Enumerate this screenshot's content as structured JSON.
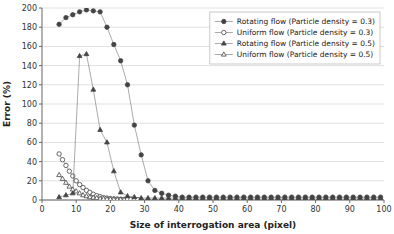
{
  "chart_data": {
    "type": "line",
    "xlabel": "Size of interrogation area (pixel)",
    "ylabel": "Error (%)",
    "xlim": [
      0,
      100
    ],
    "ylim": [
      0,
      200
    ],
    "xticks": [
      0,
      10,
      20,
      30,
      40,
      50,
      60,
      70,
      80,
      90,
      100
    ],
    "yticks": [
      0,
      20,
      40,
      60,
      80,
      100,
      120,
      140,
      160,
      180,
      200
    ],
    "grid": true,
    "legend": "upper right",
    "color": "#444444",
    "series": [
      {
        "name": "Rotating flow (Particle density = 0.3)",
        "marker": "circle",
        "x": [
          5,
          7,
          9,
          11,
          13,
          15,
          17,
          19,
          21,
          23,
          25,
          27,
          29,
          31,
          33,
          35,
          37,
          39,
          41,
          43,
          45,
          47,
          49,
          51,
          53,
          55,
          57,
          59,
          61,
          63,
          65,
          67,
          69,
          71,
          73,
          75,
          77,
          79,
          81,
          83,
          85,
          87,
          89,
          91,
          93,
          95,
          97,
          99
        ],
        "values": [
          183,
          190,
          193,
          196,
          198,
          197,
          196,
          180,
          162,
          145,
          120,
          78,
          47,
          20,
          10,
          7,
          5,
          4,
          3,
          3,
          3,
          3,
          3,
          3,
          3,
          3,
          3,
          3,
          3,
          3,
          3,
          3,
          3,
          3,
          3,
          3,
          3,
          3,
          3,
          3,
          3,
          3,
          3,
          3,
          3,
          3,
          3,
          3
        ]
      },
      {
        "name": "Uniform flow (Particle density = 0.3)",
        "marker": "circle-open",
        "x": [
          5,
          6,
          7,
          8,
          9,
          10,
          11,
          12,
          13,
          14,
          15,
          16,
          17,
          18,
          19,
          20,
          21,
          22,
          23,
          24,
          25,
          26,
          27,
          28
        ],
        "values": [
          48,
          42,
          36,
          30,
          25,
          20,
          16,
          13,
          10,
          8,
          6,
          4.5,
          3.5,
          2.5,
          2,
          1.5,
          1.2,
          1,
          0.8,
          0.7,
          0.6,
          0.5,
          0.4,
          0.3
        ]
      },
      {
        "name": "Rotating flow (Particle density = 0.5)",
        "marker": "triangle",
        "x": [
          5,
          7,
          9,
          11,
          13,
          15,
          17,
          19,
          21,
          23,
          25,
          27,
          29,
          31,
          33,
          35,
          37,
          39,
          41,
          43,
          45,
          47,
          49,
          51,
          53,
          55,
          57,
          59,
          61,
          63,
          65,
          67,
          69,
          71,
          73,
          75,
          77,
          79,
          81,
          83,
          85,
          87,
          89,
          91,
          93,
          95,
          97,
          99
        ],
        "values": [
          3,
          5,
          7,
          150,
          152,
          115,
          73,
          60,
          30,
          8,
          4,
          3,
          2,
          2,
          2,
          2,
          2,
          2,
          2,
          2,
          2,
          2,
          2,
          2,
          2,
          2,
          2,
          2,
          2,
          2,
          2,
          2,
          2,
          2,
          2,
          2,
          2,
          2,
          2,
          2,
          2,
          2,
          2,
          2,
          2,
          2,
          2,
          2
        ]
      },
      {
        "name": "Uniform flow (Particle density = 0.5)",
        "marker": "triangle-open",
        "x": [
          5,
          6,
          7,
          8,
          9,
          10,
          11,
          12,
          13,
          14,
          15,
          16,
          17,
          18,
          19,
          20,
          21,
          22,
          23,
          24
        ],
        "values": [
          26,
          22,
          18,
          14,
          11,
          9,
          7,
          5,
          4,
          3,
          2.5,
          2,
          1.5,
          1.2,
          1,
          0.8,
          0.6,
          0.5,
          0.4,
          0.3
        ]
      }
    ]
  }
}
